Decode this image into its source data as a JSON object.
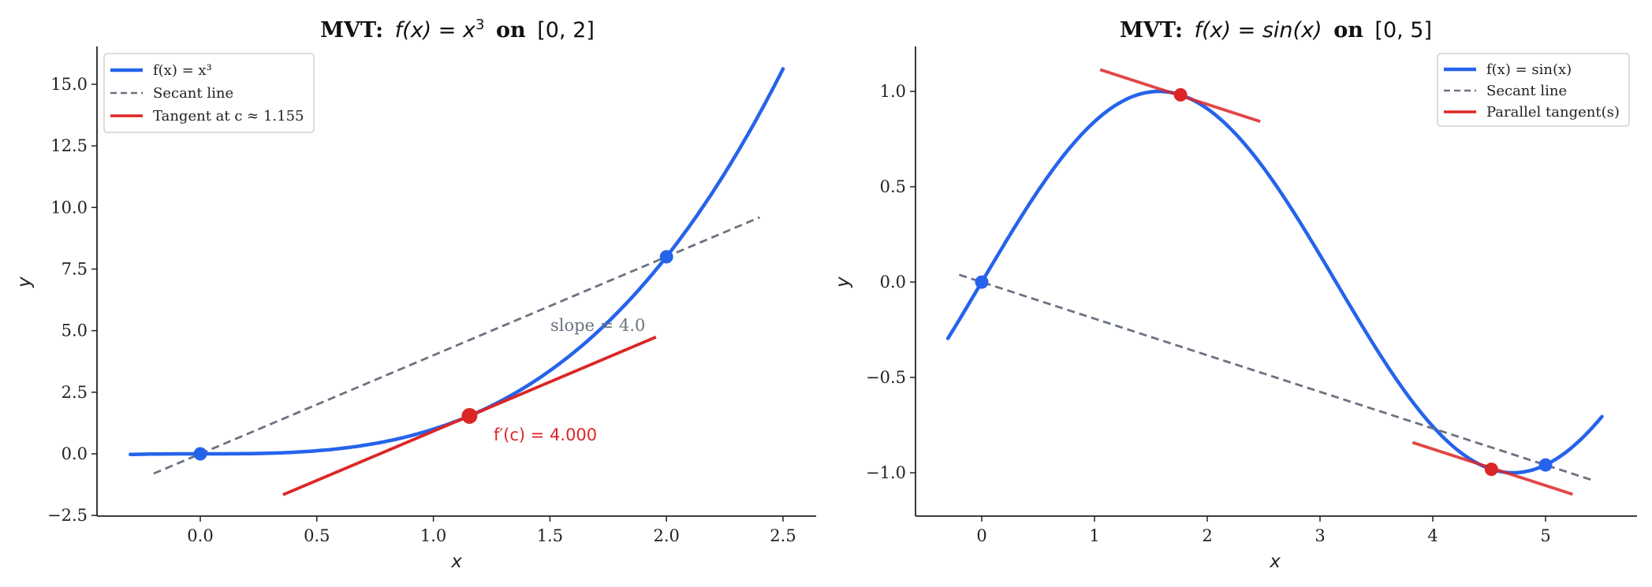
{
  "chart_data": [
    {
      "type": "line",
      "title": "MVT: f(x) = x³ on [0, 2]",
      "title_parts": {
        "bold": "MVT:",
        "math": "f(x) = x³",
        "bold2": "on",
        "interval": "[0, 2]"
      },
      "xlabel": "x",
      "ylabel": "y",
      "xlim": [
        -0.44,
        2.63
      ],
      "ylim": [
        -2.5,
        16.4
      ],
      "xticks": [
        "0.0",
        "0.5",
        "1.0",
        "1.5",
        "2.0",
        "2.5"
      ],
      "yticks": [
        "−2.5",
        "0.0",
        "2.5",
        "5.0",
        "7.5",
        "10.0",
        "12.5",
        "15.0"
      ],
      "grid": false,
      "legend_position": "upper left",
      "legend": [
        "f(x) = x³",
        "Secant line",
        "Tangent at c ≈ 1.155"
      ],
      "series": [
        {
          "name": "f(x) = x³",
          "function": "x^3",
          "x_range": [
            -0.3,
            2.5
          ],
          "color": "#2563eb",
          "style": "solid"
        },
        {
          "name": "Secant line",
          "x": [
            -0.2,
            2.4
          ],
          "y": [
            -0.8,
            9.6
          ],
          "color": "#6b7280",
          "style": "dashed"
        },
        {
          "name": "Tangent at c ≈ 1.155",
          "x": [
            0.355,
            1.955
          ],
          "y": [
            -1.66,
            4.74
          ],
          "color": "#dc2626",
          "style": "solid"
        }
      ],
      "points": [
        {
          "x": 0,
          "y": 0,
          "color": "#2563eb"
        },
        {
          "x": 2,
          "y": 8,
          "color": "#2563eb"
        },
        {
          "x": 1.155,
          "y": 1.54,
          "color": "#dc2626"
        }
      ],
      "annotations": [
        {
          "text": "slope = 4.0",
          "x": 1.5,
          "y": 5.0,
          "color": "#6b7280"
        },
        {
          "text": "f′(c) = 4.000",
          "x": 1.26,
          "y": 0.6,
          "color": "#dc2626"
        }
      ]
    },
    {
      "type": "line",
      "title": "MVT: f(x) = sin(x) on [0, 5]",
      "title_parts": {
        "bold": "MVT:",
        "math": "f(x) = sin(x)",
        "bold2": "on",
        "interval": "[0, 5]"
      },
      "xlabel": "x",
      "ylabel": "y",
      "xlim": [
        -0.59,
        5.8
      ],
      "ylim": [
        -1.227,
        1.235
      ],
      "xticks": [
        "0",
        "1",
        "2",
        "3",
        "4",
        "5"
      ],
      "yticks": [
        "−1.0",
        "−0.5",
        "0.0",
        "0.5",
        "1.0"
      ],
      "grid": false,
      "legend_position": "upper right",
      "legend": [
        "f(x) = sin(x)",
        "Secant line",
        "Parallel tangent(s)"
      ],
      "series": [
        {
          "name": "f(x) = sin(x)",
          "function": "sin(x)",
          "x_range": [
            -0.3,
            5.5
          ],
          "color": "#2563eb",
          "style": "solid"
        },
        {
          "name": "Secant line",
          "x": [
            -0.2,
            5.4
          ],
          "y": [
            0.0384,
            -1.036
          ],
          "color": "#6b7280",
          "style": "dashed"
        },
        {
          "name": "Parallel tangent(s)",
          "x": [
            1.05,
            2.47
          ],
          "y": [
            1.114,
            0.842
          ],
          "color": "#dc2626",
          "style": "solid"
        },
        {
          "name": "Parallel tangent(s) 2",
          "x": [
            3.82,
            5.24
          ],
          "y": [
            -0.841,
            -1.113
          ],
          "color": "#dc2626",
          "style": "solid"
        }
      ],
      "points": [
        {
          "x": 0,
          "y": 0,
          "color": "#2563eb"
        },
        {
          "x": 5,
          "y": -0.959,
          "color": "#2563eb"
        },
        {
          "x": 1.763,
          "y": 0.982,
          "color": "#dc2626"
        },
        {
          "x": 4.52,
          "y": -0.982,
          "color": "#dc2626"
        }
      ],
      "annotations": []
    }
  ]
}
